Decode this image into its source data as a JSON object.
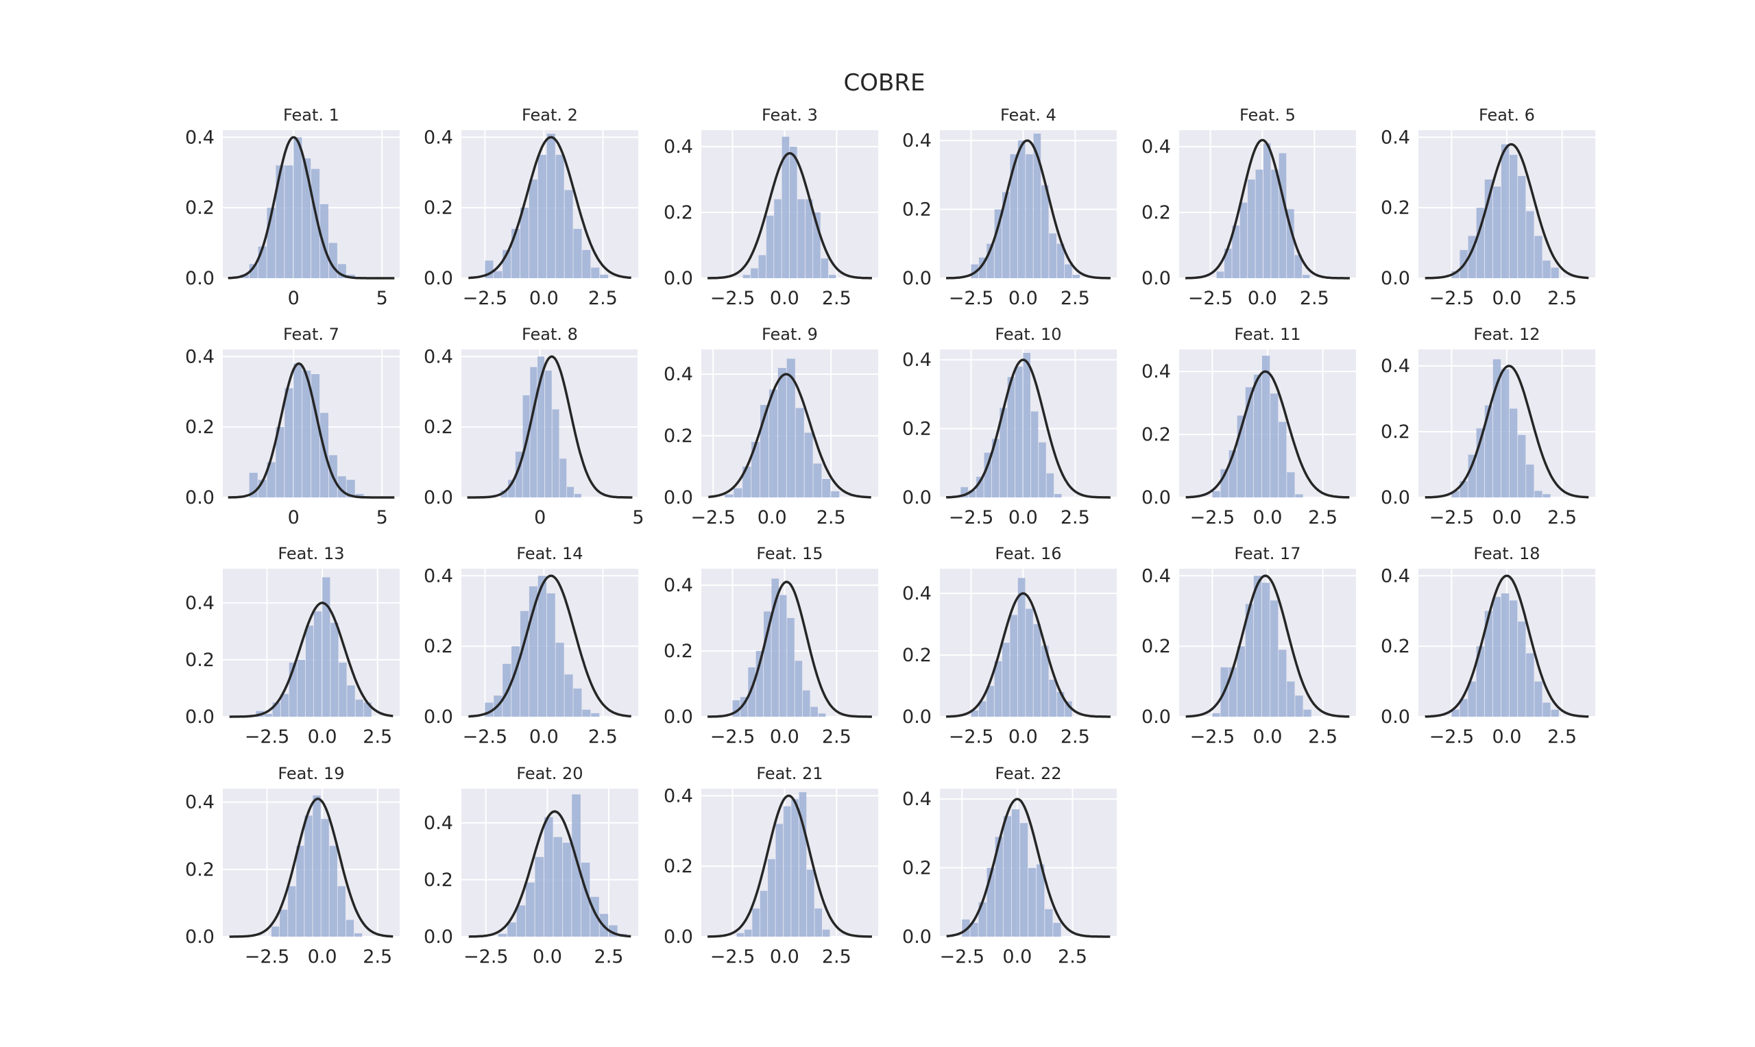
{
  "figure_title": "COBRE",
  "colors": {
    "panel_bg": "#eaeaf2",
    "grid": "#ffffff",
    "bar": "#9db0d6",
    "curve": "#262626",
    "text": "#262626"
  },
  "chart_data": [
    {
      "type": "bar",
      "title": "Feat. 1",
      "xlim": [
        -4,
        6
      ],
      "ylim": [
        0,
        0.42
      ],
      "xticks": [
        0,
        5
      ],
      "xtick_labels": [
        "0",
        "5"
      ],
      "yticks": [
        0,
        0.2,
        0.4
      ],
      "ytick_labels": [
        "0.0",
        "0.2",
        "0.4"
      ],
      "bin_start": -3.0,
      "bin_width": 0.5,
      "values": [
        0.01,
        0.04,
        0.09,
        0.2,
        0.32,
        0.32,
        0.4,
        0.34,
        0.31,
        0.21,
        0.1,
        0.04,
        0.01,
        0.0,
        0.0,
        0.0,
        0.0,
        0.0
      ],
      "curve": {
        "type": "normal_pdf",
        "mean": 0,
        "std": 1,
        "peak": 0.4
      }
    },
    {
      "type": "bar",
      "title": "Feat. 2",
      "xlim": [
        -3.5,
        4.0
      ],
      "ylim": [
        0,
        0.42
      ],
      "xticks": [
        -2.5,
        0,
        2.5
      ],
      "xtick_labels": [
        "−2.5",
        "0.0",
        "2.5"
      ],
      "yticks": [
        0,
        0.2,
        0.4
      ],
      "ytick_labels": [
        "0.0",
        "0.2",
        "0.4"
      ],
      "bin_start": -2.5,
      "bin_width": 0.375,
      "values": [
        0.05,
        0.02,
        0.08,
        0.14,
        0.2,
        0.28,
        0.35,
        0.41,
        0.35,
        0.25,
        0.14,
        0.08,
        0.03,
        0.01
      ],
      "curve": {
        "type": "normal_pdf",
        "mean": 0.3,
        "std": 1,
        "peak": 0.4
      }
    },
    {
      "type": "bar",
      "title": "Feat. 3",
      "xlim": [
        -4.0,
        4.5
      ],
      "ylim": [
        0,
        0.45
      ],
      "xticks": [
        -2.5,
        0,
        2.5
      ],
      "xtick_labels": [
        "−2.5",
        "0.0",
        "2.5"
      ],
      "yticks": [
        0,
        0.2,
        0.4
      ],
      "ytick_labels": [
        "0.0",
        "0.2",
        "0.4"
      ],
      "bin_start": -2.0,
      "bin_width": 0.375,
      "values": [
        0.01,
        0.03,
        0.07,
        0.19,
        0.24,
        0.43,
        0.4,
        0.24,
        0.24,
        0.2,
        0.06,
        0.01
      ],
      "curve": {
        "type": "normal_pdf",
        "mean": 0.25,
        "std": 1,
        "peak": 0.38
      }
    },
    {
      "type": "bar",
      "title": "Feat. 4",
      "xlim": [
        -4.0,
        4.5
      ],
      "ylim": [
        0,
        0.43
      ],
      "xticks": [
        -2.5,
        0,
        2.5
      ],
      "xtick_labels": [
        "−2.5",
        "0.0",
        "2.5"
      ],
      "yticks": [
        0,
        0.2,
        0.4
      ],
      "ytick_labels": [
        "0.0",
        "0.2",
        "0.4"
      ],
      "bin_start": -2.5,
      "bin_width": 0.375,
      "values": [
        0.04,
        0.06,
        0.1,
        0.2,
        0.25,
        0.36,
        0.4,
        0.36,
        0.42,
        0.27,
        0.13,
        0.1,
        0.04,
        0.01
      ],
      "curve": {
        "type": "normal_pdf",
        "mean": 0.2,
        "std": 1,
        "peak": 0.4
      }
    },
    {
      "type": "bar",
      "title": "Feat. 5",
      "xlim": [
        -4.0,
        4.5
      ],
      "ylim": [
        0,
        0.45
      ],
      "xticks": [
        -2.5,
        0,
        2.5
      ],
      "xtick_labels": [
        "−2.5",
        "0.0",
        "2.5"
      ],
      "yticks": [
        0,
        0.2,
        0.4
      ],
      "ytick_labels": [
        "0.0",
        "0.2",
        "0.4"
      ],
      "bin_start": -2.2,
      "bin_width": 0.375,
      "values": [
        0.02,
        0.09,
        0.16,
        0.23,
        0.3,
        0.33,
        0.41,
        0.33,
        0.38,
        0.21,
        0.07,
        0.01
      ],
      "curve": {
        "type": "normal_pdf",
        "mean": 0,
        "std": 0.95,
        "peak": 0.42
      }
    },
    {
      "type": "bar",
      "title": "Feat. 6",
      "xlim": [
        -4.0,
        4.0
      ],
      "ylim": [
        0,
        0.42
      ],
      "xticks": [
        -2.5,
        0,
        2.5
      ],
      "xtick_labels": [
        "−2.5",
        "0.0",
        "2.5"
      ],
      "yticks": [
        0,
        0.2,
        0.4
      ],
      "ytick_labels": [
        "0.0",
        "0.2",
        "0.4"
      ],
      "bin_start": -2.5,
      "bin_width": 0.375,
      "values": [
        0.02,
        0.08,
        0.12,
        0.2,
        0.28,
        0.26,
        0.38,
        0.35,
        0.29,
        0.19,
        0.12,
        0.05,
        0.03
      ],
      "curve": {
        "type": "normal_pdf",
        "mean": 0.2,
        "std": 1,
        "peak": 0.38
      }
    },
    {
      "type": "bar",
      "title": "Feat. 7",
      "xlim": [
        -4,
        6
      ],
      "ylim": [
        0,
        0.42
      ],
      "xticks": [
        0,
        5
      ],
      "xtick_labels": [
        "0",
        "5"
      ],
      "yticks": [
        0,
        0.2,
        0.4
      ],
      "ytick_labels": [
        "0.0",
        "0.2",
        "0.4"
      ],
      "bin_start": -2.5,
      "bin_width": 0.5,
      "values": [
        0.07,
        0.05,
        0.1,
        0.2,
        0.31,
        0.38,
        0.36,
        0.35,
        0.24,
        0.12,
        0.06,
        0.05,
        0.01
      ],
      "curve": {
        "type": "normal_pdf",
        "mean": 0.3,
        "std": 1,
        "peak": 0.38
      }
    },
    {
      "type": "bar",
      "title": "Feat. 8",
      "xlim": [
        -4,
        5
      ],
      "ylim": [
        0,
        0.42
      ],
      "xticks": [
        0,
        5
      ],
      "xtick_labels": [
        "0",
        "5"
      ],
      "yticks": [
        0,
        0.2,
        0.4
      ],
      "ytick_labels": [
        "0.0",
        "0.2",
        "0.4"
      ],
      "bin_start": -2.0,
      "bin_width": 0.375,
      "values": [
        0.02,
        0.05,
        0.13,
        0.29,
        0.37,
        0.4,
        0.36,
        0.25,
        0.11,
        0.03,
        0.01
      ],
      "curve": {
        "type": "normal_pdf",
        "mean": 0.6,
        "std": 0.95,
        "peak": 0.4
      }
    },
    {
      "type": "bar",
      "title": "Feat. 9",
      "xlim": [
        -3.0,
        4.5
      ],
      "ylim": [
        0,
        0.48
      ],
      "xticks": [
        -2.5,
        0,
        2.5
      ],
      "xtick_labels": [
        "−2.5",
        "0.0",
        "2.5"
      ],
      "yticks": [
        0,
        0.2,
        0.4
      ],
      "ytick_labels": [
        "0.0",
        "0.2",
        "0.4"
      ],
      "bin_start": -2.0,
      "bin_width": 0.375,
      "values": [
        0.01,
        0.03,
        0.1,
        0.18,
        0.3,
        0.35,
        0.42,
        0.45,
        0.29,
        0.21,
        0.11,
        0.06,
        0.02
      ],
      "curve": {
        "type": "normal_pdf",
        "mean": 0.6,
        "std": 1,
        "peak": 0.4
      }
    },
    {
      "type": "bar",
      "title": "Feat. 10",
      "xlim": [
        -4.0,
        4.5
      ],
      "ylim": [
        0,
        0.43
      ],
      "xticks": [
        -2.5,
        0,
        2.5
      ],
      "xtick_labels": [
        "−2.5",
        "0.0",
        "2.5"
      ],
      "yticks": [
        0,
        0.2,
        0.4
      ],
      "ytick_labels": [
        "0.0",
        "0.2",
        "0.4"
      ],
      "bin_start": -3.0,
      "bin_width": 0.375,
      "values": [
        0.03,
        0.02,
        0.06,
        0.13,
        0.17,
        0.26,
        0.35,
        0.38,
        0.42,
        0.25,
        0.16,
        0.07,
        0.01,
        0.0
      ],
      "curve": {
        "type": "normal_pdf",
        "mean": 0,
        "std": 1,
        "peak": 0.4
      }
    },
    {
      "type": "bar",
      "title": "Feat. 11",
      "xlim": [
        -4.0,
        4.0
      ],
      "ylim": [
        0,
        0.47
      ],
      "xticks": [
        -2.5,
        0,
        2.5
      ],
      "xtick_labels": [
        "−2.5",
        "0.0",
        "2.5"
      ],
      "yticks": [
        0,
        0.2,
        0.4
      ],
      "ytick_labels": [
        "0.0",
        "0.2",
        "0.4"
      ],
      "bin_start": -2.5,
      "bin_width": 0.375,
      "values": [
        0.02,
        0.09,
        0.15,
        0.26,
        0.35,
        0.39,
        0.45,
        0.33,
        0.24,
        0.08,
        0.01
      ],
      "curve": {
        "type": "normal_pdf",
        "mean": -0.1,
        "std": 1,
        "peak": 0.4
      }
    },
    {
      "type": "bar",
      "title": "Feat. 12",
      "xlim": [
        -4.0,
        4.0
      ],
      "ylim": [
        0,
        0.45
      ],
      "xticks": [
        -2.5,
        0,
        2.5
      ],
      "xtick_labels": [
        "−2.5",
        "0.0",
        "2.5"
      ],
      "yticks": [
        0,
        0.2,
        0.4
      ],
      "ytick_labels": [
        "0.0",
        "0.2",
        "0.4"
      ],
      "bin_start": -2.5,
      "bin_width": 0.375,
      "values": [
        0.02,
        0.05,
        0.13,
        0.21,
        0.28,
        0.42,
        0.39,
        0.27,
        0.19,
        0.1,
        0.02,
        0.01
      ],
      "curve": {
        "type": "normal_pdf",
        "mean": 0.1,
        "std": 1,
        "peak": 0.4
      }
    },
    {
      "type": "bar",
      "title": "Feat. 13",
      "xlim": [
        -4.5,
        3.5
      ],
      "ylim": [
        0,
        0.52
      ],
      "xticks": [
        -2.5,
        0,
        2.5
      ],
      "xtick_labels": [
        "−2.5",
        "0.0",
        "2.5"
      ],
      "yticks": [
        0,
        0.2,
        0.4
      ],
      "ytick_labels": [
        "0.0",
        "0.2",
        "0.4"
      ],
      "bin_start": -3.0,
      "bin_width": 0.375,
      "values": [
        0.02,
        0.01,
        0.05,
        0.08,
        0.19,
        0.2,
        0.32,
        0.37,
        0.49,
        0.33,
        0.19,
        0.11,
        0.06,
        0.05
      ],
      "curve": {
        "type": "normal_pdf",
        "mean": 0,
        "std": 1,
        "peak": 0.4
      }
    },
    {
      "type": "bar",
      "title": "Feat. 14",
      "xlim": [
        -3.5,
        4.0
      ],
      "ylim": [
        0,
        0.42
      ],
      "xticks": [
        -2.5,
        0,
        2.5
      ],
      "xtick_labels": [
        "−2.5",
        "0.0",
        "2.5"
      ],
      "yticks": [
        0,
        0.2,
        0.4
      ],
      "ytick_labels": [
        "0.0",
        "0.2",
        "0.4"
      ],
      "bin_start": -2.5,
      "bin_width": 0.375,
      "values": [
        0.04,
        0.06,
        0.15,
        0.2,
        0.3,
        0.37,
        0.4,
        0.35,
        0.21,
        0.12,
        0.08,
        0.02,
        0.01
      ],
      "curve": {
        "type": "normal_pdf",
        "mean": 0.3,
        "std": 1,
        "peak": 0.4
      }
    },
    {
      "type": "bar",
      "title": "Feat. 15",
      "xlim": [
        -4.0,
        4.5
      ],
      "ylim": [
        0,
        0.45
      ],
      "xticks": [
        -2.5,
        0,
        2.5
      ],
      "xtick_labels": [
        "−2.5",
        "0.0",
        "2.5"
      ],
      "yticks": [
        0,
        0.2,
        0.4
      ],
      "ytick_labels": [
        "0.0",
        "0.2",
        "0.4"
      ],
      "bin_start": -2.5,
      "bin_width": 0.375,
      "values": [
        0.05,
        0.06,
        0.15,
        0.2,
        0.32,
        0.42,
        0.37,
        0.3,
        0.17,
        0.08,
        0.03,
        0.01
      ],
      "curve": {
        "type": "normal_pdf",
        "mean": 0.1,
        "std": 0.95,
        "peak": 0.41
      }
    },
    {
      "type": "bar",
      "title": "Feat. 16",
      "xlim": [
        -4.0,
        4.5
      ],
      "ylim": [
        0,
        0.48
      ],
      "xticks": [
        -2.5,
        0,
        2.5
      ],
      "xtick_labels": [
        "−2.5",
        "0.0",
        "2.5"
      ],
      "yticks": [
        0,
        0.2,
        0.4
      ],
      "ytick_labels": [
        "0.0",
        "0.2",
        "0.4"
      ],
      "bin_start": -2.5,
      "bin_width": 0.375,
      "values": [
        0.02,
        0.05,
        0.1,
        0.18,
        0.24,
        0.33,
        0.45,
        0.35,
        0.3,
        0.23,
        0.12,
        0.08,
        0.05
      ],
      "curve": {
        "type": "normal_pdf",
        "mean": 0,
        "std": 1,
        "peak": 0.4
      }
    },
    {
      "type": "bar",
      "title": "Feat. 17",
      "xlim": [
        -4.0,
        4.0
      ],
      "ylim": [
        0,
        0.42
      ],
      "xticks": [
        -2.5,
        0,
        2.5
      ],
      "xtick_labels": [
        "−2.5",
        "0.0",
        "2.5"
      ],
      "yticks": [
        0,
        0.2,
        0.4
      ],
      "ytick_labels": [
        "0.0",
        "0.2",
        "0.4"
      ],
      "bin_start": -2.5,
      "bin_width": 0.375,
      "values": [
        0.01,
        0.14,
        0.14,
        0.2,
        0.32,
        0.4,
        0.38,
        0.33,
        0.19,
        0.1,
        0.06,
        0.02
      ],
      "curve": {
        "type": "normal_pdf",
        "mean": -0.1,
        "std": 1,
        "peak": 0.4
      }
    },
    {
      "type": "bar",
      "title": "Feat. 18",
      "xlim": [
        -4.0,
        4.0
      ],
      "ylim": [
        0,
        0.42
      ],
      "xticks": [
        -2.5,
        0,
        2.5
      ],
      "xtick_labels": [
        "−2.5",
        "0.0",
        "2.5"
      ],
      "yticks": [
        0,
        0.2,
        0.4
      ],
      "ytick_labels": [
        "0.0",
        "0.2",
        "0.4"
      ],
      "bin_start": -2.5,
      "bin_width": 0.375,
      "values": [
        0.02,
        0.05,
        0.1,
        0.2,
        0.3,
        0.34,
        0.35,
        0.33,
        0.27,
        0.18,
        0.1,
        0.04,
        0.02
      ],
      "curve": {
        "type": "normal_pdf",
        "mean": 0,
        "std": 1,
        "peak": 0.4
      }
    },
    {
      "type": "bar",
      "title": "Feat. 19",
      "xlim": [
        -4.5,
        3.5
      ],
      "ylim": [
        0,
        0.44
      ],
      "xticks": [
        -2.5,
        0,
        2.5
      ],
      "xtick_labels": [
        "−2.5",
        "0.0",
        "2.5"
      ],
      "yticks": [
        0,
        0.2,
        0.4
      ],
      "ytick_labels": [
        "0.0",
        "0.2",
        "0.4"
      ],
      "bin_start": -2.3,
      "bin_width": 0.375,
      "values": [
        0.03,
        0.08,
        0.15,
        0.27,
        0.36,
        0.42,
        0.35,
        0.27,
        0.15,
        0.05,
        0.01
      ],
      "curve": {
        "type": "normal_pdf",
        "mean": -0.2,
        "std": 0.95,
        "peak": 0.41
      }
    },
    {
      "type": "bar",
      "title": "Feat. 20",
      "xlim": [
        -3.5,
        3.7
      ],
      "ylim": [
        0,
        0.52
      ],
      "xticks": [
        -2.5,
        0,
        2.5
      ],
      "xtick_labels": [
        "−2.5",
        "0.0",
        "2.5"
      ],
      "yticks": [
        0,
        0.2,
        0.4
      ],
      "ytick_labels": [
        "0.0",
        "0.2",
        "0.4"
      ],
      "bin_start": -2.0,
      "bin_width": 0.375,
      "values": [
        0.01,
        0.05,
        0.11,
        0.19,
        0.28,
        0.42,
        0.35,
        0.33,
        0.5,
        0.26,
        0.14,
        0.08,
        0.04,
        0.01
      ],
      "curve": {
        "type": "normal_pdf",
        "mean": 0.3,
        "std": 0.9,
        "peak": 0.44
      }
    },
    {
      "type": "bar",
      "title": "Feat. 21",
      "xlim": [
        -4.0,
        4.5
      ],
      "ylim": [
        0,
        0.42
      ],
      "xticks": [
        -2.5,
        0,
        2.5
      ],
      "xtick_labels": [
        "−2.5",
        "0.0",
        "2.5"
      ],
      "yticks": [
        0,
        0.2,
        0.4
      ],
      "ytick_labels": [
        "0.0",
        "0.2",
        "0.4"
      ],
      "bin_start": -2.3,
      "bin_width": 0.375,
      "values": [
        0.01,
        0.02,
        0.08,
        0.13,
        0.22,
        0.32,
        0.37,
        0.39,
        0.41,
        0.19,
        0.08,
        0.02
      ],
      "curve": {
        "type": "normal_pdf",
        "mean": 0.2,
        "std": 1,
        "peak": 0.4
      }
    },
    {
      "type": "bar",
      "title": "Feat. 22",
      "xlim": [
        -3.5,
        4.5
      ],
      "ylim": [
        0,
        0.43
      ],
      "xticks": [
        -2.5,
        0,
        2.5
      ],
      "xtick_labels": [
        "−2.5",
        "0.0",
        "2.5"
      ],
      "yticks": [
        0,
        0.2,
        0.4
      ],
      "ytick_labels": [
        "0.0",
        "0.2",
        "0.4"
      ],
      "bin_start": -2.5,
      "bin_width": 0.375,
      "values": [
        0.05,
        0.04,
        0.1,
        0.2,
        0.29,
        0.35,
        0.37,
        0.33,
        0.2,
        0.21,
        0.08,
        0.04
      ],
      "curve": {
        "type": "normal_pdf",
        "mean": 0,
        "std": 0.95,
        "peak": 0.4
      }
    }
  ]
}
